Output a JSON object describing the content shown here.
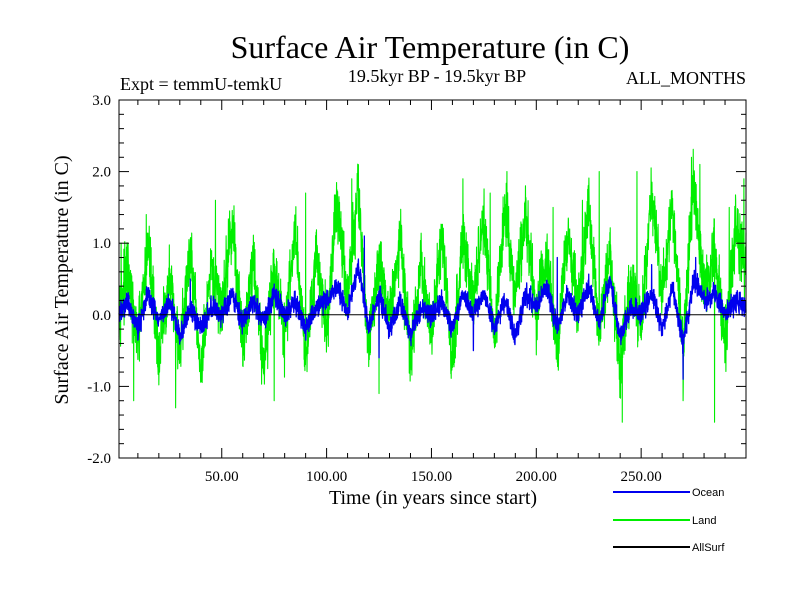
{
  "chart_data": {
    "type": "line",
    "title": "Surface Air Temperature (in C)",
    "subtitle_left": "Expt = temmU-temkU",
    "subtitle_center": "19.5kyr BP - 19.5kyr BP",
    "subtitle_right": "ALL_MONTHS",
    "xlabel": "Time (in years since start)",
    "ylabel": "Surface Air Temperature (in C)",
    "xlim": [
      1,
      300
    ],
    "ylim": [
      -2.0,
      3.0
    ],
    "x_ticks": [
      50,
      100,
      150,
      200,
      250
    ],
    "x_tick_labels": [
      "50.00",
      "100.00",
      "150.00",
      "200.00",
      "250.00"
    ],
    "y_ticks": [
      -2.0,
      -1.0,
      0.0,
      1.0,
      2.0,
      3.0
    ],
    "y_tick_labels": [
      "-2.0",
      "-1.0",
      "0.0",
      "1.0",
      "2.0",
      "3.0"
    ],
    "legend_position": "bottom-right",
    "series": [
      {
        "name": "Land",
        "color": "#00ee00",
        "samples_per_year": 12,
        "anchors": [
          [
            1,
            0.1
          ],
          [
            5,
            0.6
          ],
          [
            10,
            -0.4
          ],
          [
            15,
            1.0
          ],
          [
            20,
            -0.6
          ],
          [
            25,
            0.5
          ],
          [
            30,
            -0.5
          ],
          [
            35,
            0.9
          ],
          [
            40,
            -0.8
          ],
          [
            45,
            0.6
          ],
          [
            50,
            0.1
          ],
          [
            55,
            1.3
          ],
          [
            60,
            -0.4
          ],
          [
            65,
            0.8
          ],
          [
            70,
            -0.7
          ],
          [
            75,
            0.7
          ],
          [
            80,
            -0.3
          ],
          [
            85,
            1.2
          ],
          [
            90,
            -0.6
          ],
          [
            95,
            0.9
          ],
          [
            100,
            -0.2
          ],
          [
            105,
            1.6
          ],
          [
            110,
            0.2
          ],
          [
            115,
            1.8
          ],
          [
            120,
            -0.5
          ],
          [
            125,
            0.8
          ],
          [
            130,
            0.0
          ],
          [
            135,
            1.1
          ],
          [
            140,
            -0.6
          ],
          [
            145,
            0.7
          ],
          [
            150,
            -0.3
          ],
          [
            155,
            1.2
          ],
          [
            160,
            -0.7
          ],
          [
            165,
            1.0
          ],
          [
            170,
            0.2
          ],
          [
            175,
            1.3
          ],
          [
            180,
            -0.4
          ],
          [
            185,
            1.5
          ],
          [
            190,
            0.3
          ],
          [
            195,
            1.4
          ],
          [
            200,
            0.0
          ],
          [
            205,
            0.8
          ],
          [
            210,
            -0.5
          ],
          [
            215,
            1.2
          ],
          [
            220,
            0.1
          ],
          [
            225,
            1.6
          ],
          [
            230,
            -0.3
          ],
          [
            235,
            0.9
          ],
          [
            240,
            -0.8
          ],
          [
            245,
            0.5
          ],
          [
            250,
            -0.2
          ],
          [
            255,
            1.7
          ],
          [
            260,
            0.3
          ],
          [
            265,
            1.5
          ],
          [
            270,
            -0.5
          ],
          [
            275,
            1.9
          ],
          [
            280,
            0.2
          ],
          [
            285,
            0.9
          ],
          [
            290,
            -0.4
          ],
          [
            295,
            1.2
          ],
          [
            300,
            0.6
          ]
        ],
        "extremes": [
          [
            2,
            1.0
          ],
          [
            8,
            -1.2
          ],
          [
            14,
            1.4
          ],
          [
            28,
            -1.3
          ],
          [
            47,
            1.6
          ],
          [
            75,
            -1.2
          ],
          [
            90,
            1.7
          ],
          [
            112,
            1.9
          ],
          [
            125,
            -1.1
          ],
          [
            165,
            1.9
          ],
          [
            178,
            1.7
          ],
          [
            186,
            2.0
          ],
          [
            208,
            1.5
          ],
          [
            222,
            1.6
          ],
          [
            230,
            2.0
          ],
          [
            241,
            -1.5
          ],
          [
            248,
            2.0
          ],
          [
            270,
            -1.2
          ],
          [
            274,
            2.2
          ],
          [
            278,
            2.1
          ],
          [
            285,
            -1.5
          ],
          [
            292,
            1.5
          ],
          [
            299,
            1.9
          ]
        ]
      },
      {
        "name": "Ocean",
        "color": "#0000ee",
        "samples_per_year": 12,
        "anchors": [
          [
            1,
            0.0
          ],
          [
            5,
            0.2
          ],
          [
            10,
            -0.2
          ],
          [
            15,
            0.3
          ],
          [
            20,
            -0.1
          ],
          [
            25,
            0.2
          ],
          [
            30,
            -0.3
          ],
          [
            35,
            0.1
          ],
          [
            40,
            -0.2
          ],
          [
            45,
            0.1
          ],
          [
            50,
            0.0
          ],
          [
            55,
            0.3
          ],
          [
            60,
            -0.1
          ],
          [
            65,
            0.2
          ],
          [
            70,
            -0.1
          ],
          [
            75,
            0.3
          ],
          [
            80,
            0.0
          ],
          [
            85,
            0.2
          ],
          [
            90,
            -0.2
          ],
          [
            95,
            0.1
          ],
          [
            100,
            0.2
          ],
          [
            105,
            0.4
          ],
          [
            110,
            0.0
          ],
          [
            115,
            0.7
          ],
          [
            120,
            -0.2
          ],
          [
            125,
            0.3
          ],
          [
            130,
            -0.2
          ],
          [
            135,
            0.2
          ],
          [
            140,
            -0.3
          ],
          [
            145,
            0.1
          ],
          [
            150,
            0.0
          ],
          [
            155,
            0.2
          ],
          [
            160,
            -0.2
          ],
          [
            165,
            0.3
          ],
          [
            170,
            0.0
          ],
          [
            175,
            0.3
          ],
          [
            180,
            -0.2
          ],
          [
            185,
            0.2
          ],
          [
            190,
            -0.3
          ],
          [
            195,
            0.3
          ],
          [
            200,
            0.1
          ],
          [
            205,
            0.4
          ],
          [
            210,
            -0.2
          ],
          [
            215,
            0.3
          ],
          [
            220,
            0.0
          ],
          [
            225,
            0.4
          ],
          [
            230,
            -0.1
          ],
          [
            235,
            0.5
          ],
          [
            240,
            -0.3
          ],
          [
            245,
            0.1
          ],
          [
            250,
            0.0
          ],
          [
            255,
            0.3
          ],
          [
            260,
            -0.2
          ],
          [
            265,
            0.4
          ],
          [
            270,
            -0.4
          ],
          [
            275,
            0.5
          ],
          [
            280,
            0.2
          ],
          [
            285,
            0.3
          ],
          [
            290,
            0.0
          ],
          [
            295,
            0.2
          ],
          [
            300,
            0.1
          ]
        ],
        "extremes": [
          [
            35,
            0.5
          ],
          [
            118,
            1.1
          ],
          [
            125,
            -0.6
          ],
          [
            170,
            -0.5
          ],
          [
            210,
            0.8
          ],
          [
            255,
            0.7
          ],
          [
            270,
            -0.9
          ],
          [
            276,
            0.8
          ]
        ]
      },
      {
        "name": "AllSurf",
        "color": "#000000",
        "samples_per_year": 1,
        "anchors": [
          [
            1,
            0.0
          ],
          [
            300,
            0.0
          ]
        ],
        "extremes": []
      }
    ]
  }
}
